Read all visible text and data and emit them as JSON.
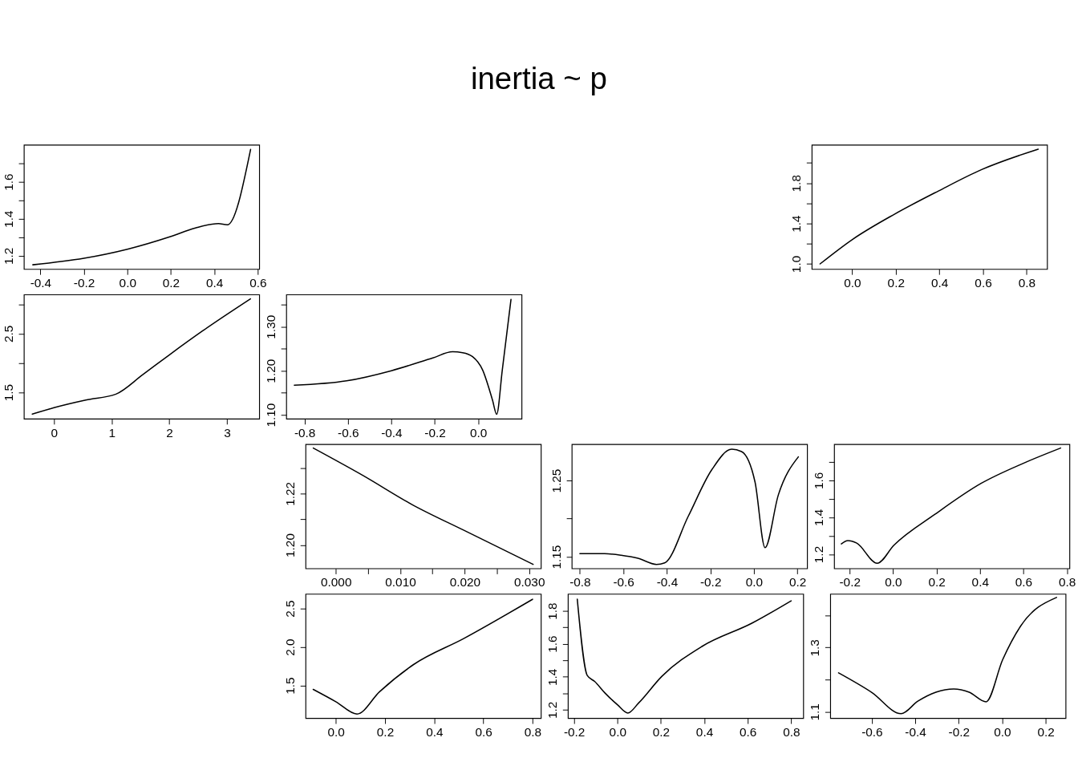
{
  "chart_data": [
    {
      "type": "line",
      "annotations": [
        "inertia ~ p"
      ],
      "grid": false,
      "xlim": [
        -0.476,
        0.607
      ],
      "ylim": [
        1.128,
        1.8
      ],
      "xticks": [
        -0.4,
        -0.2,
        {
          "value": 0,
          "label": "0.0"
        },
        0.2,
        0.4,
        0.6
      ],
      "yticks": [
        1.2,
        {
          "value": 1.3,
          "label": null
        },
        1.4,
        {
          "value": 1.5,
          "label": null
        },
        1.6,
        {
          "value": 1.7,
          "label": null
        }
      ],
      "series": [
        {
          "color": "#000000",
          "x": [
            -0.435,
            -0.2,
            0.0,
            0.195,
            0.313,
            0.419,
            0.46,
            0.567
          ],
          "values": [
            1.151,
            1.186,
            1.235,
            1.302,
            1.35,
            1.374,
            1.367,
            1.775
          ]
        }
      ]
    },
    {
      "type": "line",
      "grid": false,
      "xlim": [
        -0.185,
        0.894
      ],
      "ylim": [
        0.949,
        2.179
      ],
      "xticks": [
        {
          "value": 0,
          "label": "0.0"
        },
        0.2,
        0.4,
        0.6,
        0.8
      ],
      "yticks": [
        {
          "value": 1.0,
          "label": "1.0"
        },
        {
          "value": 1.2,
          "label": null
        },
        1.4,
        {
          "value": 1.6,
          "label": null
        },
        1.8,
        {
          "value": 2.0,
          "label": null
        }
      ],
      "series": [
        {
          "color": "#000000",
          "x": [
            -0.147,
            0.0,
            0.194,
            0.394,
            0.594,
            0.853
          ],
          "values": [
            1.0,
            1.24,
            1.492,
            1.72,
            1.934,
            2.136
          ]
        }
      ]
    },
    {
      "type": "line",
      "grid": false,
      "xlim": [
        -0.522,
        3.56
      ],
      "ylim": [
        1.051,
        3.165
      ],
      "xticks": [
        0,
        1,
        2,
        3
      ],
      "yticks": [
        1.5,
        {
          "value": 2.0,
          "label": null
        },
        2.5,
        {
          "value": 3.0,
          "label": null
        }
      ],
      "series": [
        {
          "color": "#000000",
          "x": [
            -0.377,
            0.0,
            0.551,
            1.074,
            1.538,
            2.003,
            2.584,
            3.407
          ],
          "values": [
            1.13,
            1.24,
            1.37,
            1.47,
            1.8,
            2.14,
            2.55,
            3.09
          ]
        }
      ]
    },
    {
      "type": "line",
      "grid": false,
      "xlim": [
        -0.884,
        0.2
      ],
      "ylim": [
        1.091,
        1.373
      ],
      "xticks": [
        -0.8,
        -0.6,
        -0.4,
        -0.2,
        {
          "value": 0,
          "label": "0.0"
        }
      ],
      "yticks": [
        {
          "value": 1.1,
          "label": "1.10"
        },
        {
          "value": 1.15,
          "label": null
        },
        {
          "value": 1.2,
          "label": "1.20"
        },
        {
          "value": 1.25,
          "label": null
        },
        {
          "value": 1.3,
          "label": "1.30"
        },
        {
          "value": 1.35,
          "label": null
        }
      ],
      "series": [
        {
          "color": "#000000",
          "x": [
            -0.847,
            -0.606,
            -0.4,
            -0.209,
            -0.118,
            -0.072,
            -0.026,
            0.02,
            0.066,
            0.085,
            0.111,
            0.151
          ],
          "values": [
            1.167,
            1.177,
            1.2,
            1.229,
            1.243,
            1.241,
            1.232,
            1.202,
            1.133,
            1.101,
            1.202,
            1.362
          ]
        }
      ]
    },
    {
      "type": "line",
      "grid": false,
      "xlim": [
        -0.0047,
        0.03183
      ],
      "ylim": [
        1.1909,
        1.2392
      ],
      "xticks": [
        {
          "value": 0,
          "label": "0.000"
        },
        {
          "value": 0.005,
          "label": null
        },
        {
          "value": 0.01,
          "label": "0.010"
        },
        {
          "value": 0.015,
          "label": null
        },
        {
          "value": 0.02,
          "label": "0.020"
        },
        {
          "value": 0.025,
          "label": null
        },
        {
          "value": 0.03,
          "label": "0.030"
        }
      ],
      "yticks": [
        {
          "value": 1.2,
          "label": "1.20"
        },
        {
          "value": 1.21,
          "label": null
        },
        1.22,
        {
          "value": 1.23,
          "label": null
        }
      ],
      "series": [
        {
          "color": "#000000",
          "x": [
            -0.0035,
            0.00417,
            0.012,
            0.01982,
            0.03062
          ],
          "values": [
            1.2377,
            1.2271,
            1.2155,
            1.2058,
            1.1925
          ]
        }
      ]
    },
    {
      "type": "line",
      "grid": false,
      "xlim": [
        -0.837,
        0.2445
      ],
      "ylim": [
        1.1347,
        1.2976
      ],
      "xticks": [
        -0.8,
        -0.6,
        -0.4,
        -0.2,
        {
          "value": 0,
          "label": "0.0"
        },
        0.2
      ],
      "yticks": [
        1.15,
        {
          "value": 1.2,
          "label": null
        },
        1.25
      ],
      "series": [
        {
          "color": "#000000",
          "x": [
            -0.8,
            -0.686,
            -0.61,
            -0.533,
            -0.448,
            -0.41,
            -0.302,
            -0.194,
            -0.102,
            -0.057,
            0.005,
            0.051,
            0.112,
            0.204
          ],
          "values": [
            1.154,
            1.154,
            1.152,
            1.148,
            1.14,
            1.142,
            1.203,
            1.264,
            1.291,
            1.288,
            1.248,
            1.162,
            1.231,
            1.281
          ]
        }
      ]
    },
    {
      "type": "line",
      "grid": false,
      "xlim": [
        -0.271,
        0.812
      ],
      "ylim": [
        1.1233,
        1.795
      ],
      "xticks": [
        -0.2,
        {
          "value": 0,
          "label": "0.0"
        },
        0.2,
        0.4,
        0.6,
        0.8
      ],
      "yticks": [
        1.2,
        {
          "value": 1.3,
          "label": null
        },
        1.4,
        {
          "value": 1.5,
          "label": null
        },
        1.6,
        {
          "value": 1.7,
          "label": null
        }
      ],
      "series": [
        {
          "color": "#000000",
          "x": [
            -0.238,
            -0.208,
            -0.167,
            -0.073,
            0.004,
            0.193,
            0.405,
            0.606,
            0.771
          ],
          "values": [
            1.256,
            1.274,
            1.26,
            1.151,
            1.249,
            1.416,
            1.583,
            1.695,
            1.774
          ]
        }
      ]
    },
    {
      "type": "line",
      "grid": false,
      "xlim": [
        -0.123,
        0.834
      ],
      "ylim": [
        1.076,
        2.69
      ],
      "xticks": [
        {
          "value": 0,
          "label": "0.0"
        },
        0.2,
        0.4,
        0.6,
        0.8
      ],
      "yticks": [
        1.5,
        {
          "value": 2.0,
          "label": "2.0"
        },
        2.5
      ],
      "series": [
        {
          "color": "#000000",
          "x": [
            -0.092,
            0.0,
            0.086,
            0.178,
            0.315,
            0.52,
            0.8
          ],
          "values": [
            1.45,
            1.29,
            1.13,
            1.42,
            1.77,
            2.11,
            2.62
          ]
        }
      ]
    },
    {
      "type": "line",
      "grid": false,
      "xlim": [
        -0.228,
        0.856
      ],
      "ylim": [
        1.149,
        1.903
      ],
      "xticks": [
        -0.2,
        {
          "value": 0,
          "label": "0.0"
        },
        0.2,
        0.4,
        0.6,
        0.8
      ],
      "yticks": [
        1.2,
        {
          "value": 1.3,
          "label": null
        },
        1.4,
        {
          "value": 1.5,
          "label": null
        },
        1.6,
        {
          "value": 1.7,
          "label": null
        },
        1.8
      ],
      "series": [
        {
          "color": "#000000",
          "x": [
            -0.185,
            -0.139,
            -0.105,
            -0.057,
            0.0,
            0.048,
            0.097,
            0.204,
            0.389,
            0.619,
            0.8
          ],
          "values": [
            1.871,
            1.408,
            1.372,
            1.301,
            1.23,
            1.18,
            1.24,
            1.402,
            1.584,
            1.725,
            1.861
          ]
        }
      ]
    },
    {
      "type": "line",
      "grid": false,
      "xlim": [
        -0.791,
        0.292
      ],
      "ylim": [
        1.08,
        1.467
      ],
      "xticks": [
        -0.6,
        -0.4,
        -0.2,
        {
          "value": 0,
          "label": "0.0"
        },
        0.2
      ],
      "yticks": [
        1.1,
        {
          "value": 1.2,
          "label": null
        },
        1.3,
        {
          "value": 1.4,
          "label": null
        }
      ],
      "series": [
        {
          "color": "#000000",
          "x": [
            -0.753,
            -0.6,
            -0.465,
            -0.388,
            -0.305,
            -0.223,
            -0.152,
            -0.074,
            0.002,
            0.085,
            0.25
          ],
          "values": [
            1.221,
            1.16,
            1.094,
            1.133,
            1.161,
            1.171,
            1.161,
            1.131,
            1.262,
            1.367,
            1.456
          ]
        }
      ]
    }
  ]
}
